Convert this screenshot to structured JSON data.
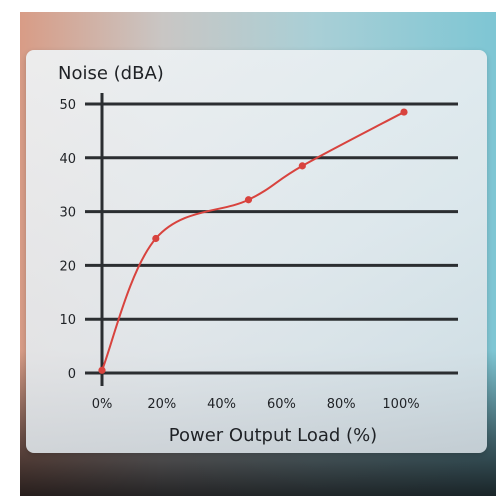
{
  "chart_data": {
    "type": "line",
    "ylabel": "Noise (dBA)",
    "xlabel": "Power Output Load (%)",
    "x_ticks": [
      "0%",
      "20%",
      "40%",
      "60%",
      "80%",
      "100%"
    ],
    "y_ticks": [
      "0",
      "10",
      "20",
      "30",
      "40",
      "50"
    ],
    "xlim": [
      0,
      100
    ],
    "ylim": [
      0,
      50
    ],
    "grid": true,
    "series": [
      {
        "color": "#d8433e",
        "points": [
          {
            "x": 0,
            "y": 0.5
          },
          {
            "x": 18,
            "y": 25
          },
          {
            "x": 49,
            "y": 32.2
          },
          {
            "x": 67,
            "y": 38.5
          },
          {
            "x": 101,
            "y": 48.5
          }
        ]
      }
    ]
  }
}
